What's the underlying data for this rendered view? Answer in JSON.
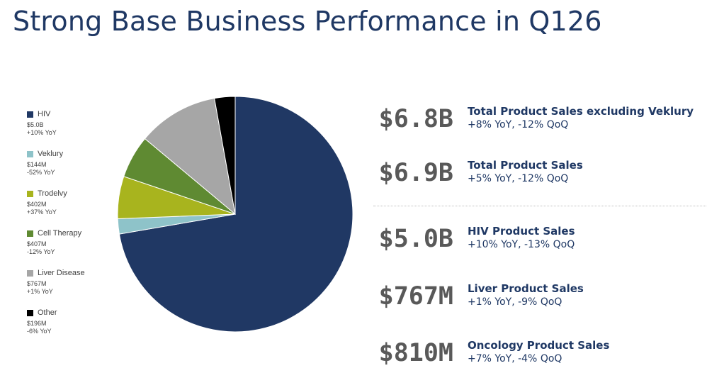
{
  "title": "Strong Base Business Performance in Q126",
  "chart_data": {
    "type": "pie",
    "title": "",
    "slices": [
      {
        "name": "HIV",
        "value": 5000,
        "value_label": "$5.0B",
        "change": "+10% YoY",
        "color": "#203864"
      },
      {
        "name": "Veklury",
        "value": 144,
        "value_label": "$144M",
        "change": "-52% YoY",
        "color": "#8ec3c9"
      },
      {
        "name": "Trodelvy",
        "value": 402,
        "value_label": "$402M",
        "change": "+37% YoY",
        "color": "#a8b41e"
      },
      {
        "name": "Cell Therapy",
        "value": 407,
        "value_label": "$407M",
        "change": "-12% YoY",
        "color": "#5f8a32"
      },
      {
        "name": "Liver Disease",
        "value": 767,
        "value_label": "$767M",
        "change": "+1% YoY",
        "color": "#a6a6a6"
      },
      {
        "name": "Other",
        "value": 196,
        "value_label": "$196M",
        "change": "-6% YoY",
        "color": "#000000"
      }
    ],
    "legend_position": "left"
  },
  "metrics": [
    {
      "value": "$6.8B",
      "label": "Total Product Sales excluding Veklury",
      "sub": "+8% YoY, -12% QoQ"
    },
    {
      "value": "$6.9B",
      "label": "Total Product Sales",
      "sub": "+5% YoY, -12% QoQ"
    },
    {
      "value": "$5.0B",
      "label": "HIV Product Sales",
      "sub": "+10% YoY, -13% QoQ"
    },
    {
      "value": "$767M",
      "label": "Liver Product Sales",
      "sub": "+1% YoY, -9% QoQ"
    },
    {
      "value": "$810M",
      "label": "Oncology Product Sales",
      "sub": "+7% YoY, -4% QoQ"
    }
  ]
}
